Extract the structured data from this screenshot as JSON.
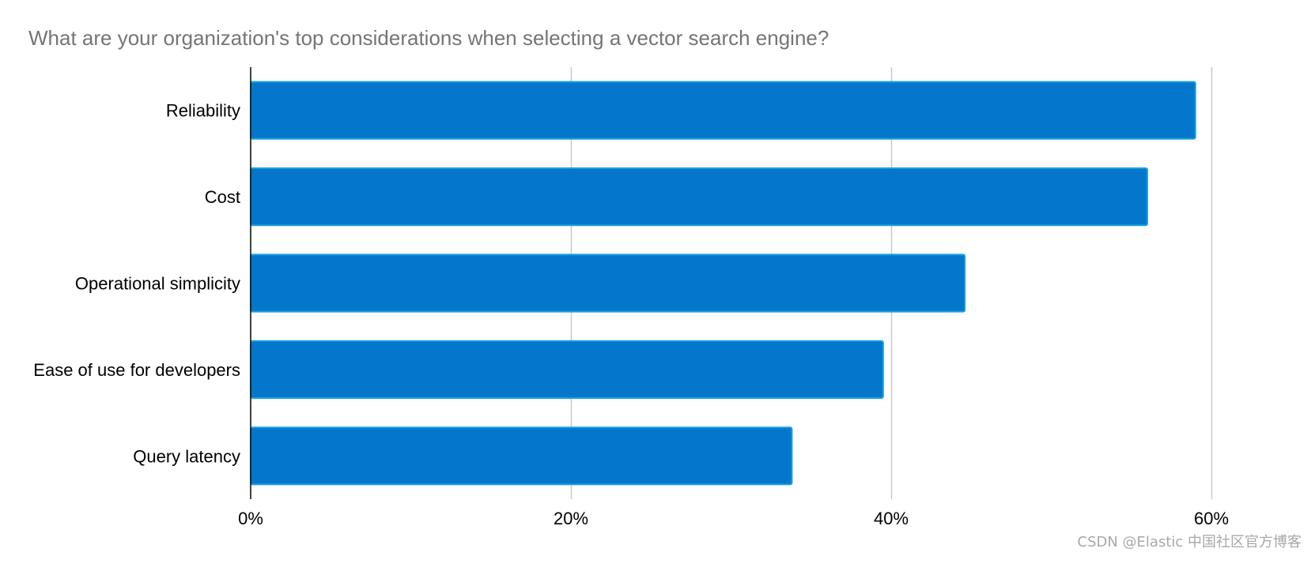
{
  "chart_data": {
    "type": "bar",
    "orientation": "horizontal",
    "title": "What are your organization's top considerations when selecting a vector search engine?",
    "categories": [
      "Reliability",
      "Cost",
      "Operational simplicity",
      "Ease of use for developers",
      "Query latency"
    ],
    "values": [
      59,
      56,
      44.6,
      39.5,
      33.8
    ],
    "unit": "%",
    "xlim": [
      0,
      60
    ],
    "ticks": [
      0,
      20,
      40,
      60
    ],
    "tick_labels": [
      "0%",
      "20%",
      "40%",
      "60%"
    ],
    "grid": true,
    "legend": "none",
    "bar_color": "#0477CC",
    "bar_border_color": "#19A1DC",
    "grid_color": "#C8C8C8",
    "axis_color": "#000000"
  },
  "watermark": "CSDN @Elastic 中国社区官方博客"
}
